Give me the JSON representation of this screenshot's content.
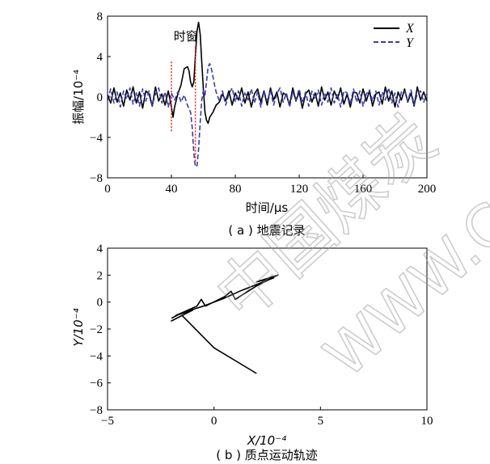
{
  "chart_data": [
    {
      "type": "line",
      "title": "",
      "caption": "( a ) 地震记录",
      "xlabel": "时间/μs",
      "ylabel": "振幅/10⁻⁴",
      "xlim": [
        0,
        200
      ],
      "ylim": [
        -8,
        8
      ],
      "xticks": [
        "0",
        "40",
        "80",
        "120",
        "160",
        "200"
      ],
      "yticks": [
        "−8",
        "−4",
        "0",
        "4",
        "8"
      ],
      "grid": false,
      "legend": "top-right",
      "annotation": {
        "text": "时窗",
        "window": [
          40,
          55
        ],
        "color": "#e03020"
      },
      "series": [
        {
          "name": "X",
          "color": "#000000",
          "style": "solid",
          "points": [
            [
              0,
              0.2
            ],
            [
              2,
              -0.6
            ],
            [
              4,
              0.9
            ],
            [
              6,
              -0.5
            ],
            [
              8,
              0.4
            ],
            [
              10,
              -0.9
            ],
            [
              12,
              0.7
            ],
            [
              14,
              -0.3
            ],
            [
              16,
              1.0
            ],
            [
              18,
              -0.6
            ],
            [
              20,
              0.5
            ],
            [
              22,
              -1.1
            ],
            [
              24,
              0.6
            ],
            [
              26,
              0.3
            ],
            [
              28,
              -0.9
            ],
            [
              30,
              1.0
            ],
            [
              32,
              -0.4
            ],
            [
              34,
              0.3
            ],
            [
              36,
              -0.8
            ],
            [
              38,
              0.6
            ],
            [
              40,
              -1.0
            ],
            [
              41,
              -2.0
            ],
            [
              42,
              -1.0
            ],
            [
              44,
              0.3
            ],
            [
              46,
              1.2
            ],
            [
              48,
              2.8
            ],
            [
              50,
              3.0
            ],
            [
              51,
              2.6
            ],
            [
              52,
              1.5
            ],
            [
              53,
              1.0
            ],
            [
              54,
              1.5
            ],
            [
              55,
              4.0
            ],
            [
              56,
              6.5
            ],
            [
              57,
              7.4
            ],
            [
              58,
              6.2
            ],
            [
              59,
              3.5
            ],
            [
              60,
              0.8
            ],
            [
              61,
              -1.5
            ],
            [
              62,
              -2.3
            ],
            [
              63,
              -2.6
            ],
            [
              64,
              -2.0
            ],
            [
              66,
              -1.5
            ],
            [
              68,
              -0.8
            ],
            [
              70,
              -0.5
            ],
            [
              72,
              0.3
            ],
            [
              74,
              -0.4
            ],
            [
              76,
              0.6
            ],
            [
              78,
              -0.8
            ],
            [
              80,
              0.4
            ],
            [
              82,
              -0.3
            ],
            [
              84,
              0.9
            ],
            [
              86,
              -0.6
            ],
            [
              88,
              0.5
            ],
            [
              90,
              -1.0
            ],
            [
              92,
              0.3
            ],
            [
              94,
              0.8
            ],
            [
              96,
              -0.5
            ],
            [
              98,
              0.6
            ],
            [
              100,
              -0.8
            ],
            [
              102,
              0.9
            ],
            [
              104,
              -0.3
            ],
            [
              106,
              0.5
            ],
            [
              108,
              -1.0
            ],
            [
              110,
              0.4
            ],
            [
              112,
              0.2
            ],
            [
              114,
              -0.8
            ],
            [
              116,
              0.9
            ],
            [
              118,
              -0.4
            ],
            [
              120,
              0.5
            ],
            [
              122,
              -1.1
            ],
            [
              124,
              0.3
            ],
            [
              126,
              0.7
            ],
            [
              128,
              -0.5
            ],
            [
              130,
              0.4
            ],
            [
              132,
              -0.9
            ],
            [
              134,
              1.0
            ],
            [
              136,
              -0.3
            ],
            [
              138,
              0.5
            ],
            [
              140,
              -0.8
            ],
            [
              142,
              0.6
            ],
            [
              144,
              -0.2
            ],
            [
              146,
              0.9
            ],
            [
              148,
              -0.7
            ],
            [
              150,
              0.3
            ],
            [
              152,
              -1.0
            ],
            [
              154,
              0.5
            ],
            [
              156,
              0.4
            ],
            [
              158,
              -0.6
            ],
            [
              160,
              0.8
            ],
            [
              162,
              -0.4
            ],
            [
              164,
              0.6
            ],
            [
              166,
              -0.9
            ],
            [
              168,
              0.3
            ],
            [
              170,
              0.5
            ],
            [
              172,
              -0.7
            ],
            [
              174,
              1.0
            ],
            [
              176,
              -0.4
            ],
            [
              178,
              0.6
            ],
            [
              180,
              -1.0
            ],
            [
              182,
              0.5
            ],
            [
              184,
              -0.3
            ],
            [
              186,
              0.8
            ],
            [
              188,
              -0.5
            ],
            [
              190,
              0.4
            ],
            [
              192,
              -0.9
            ],
            [
              194,
              1.0
            ],
            [
              196,
              -0.3
            ],
            [
              198,
              0.5
            ],
            [
              200,
              -0.4
            ]
          ]
        },
        {
          "name": "Y",
          "color": "#3b3bb0",
          "style": "dashed",
          "points": [
            [
              0,
              -0.3
            ],
            [
              2,
              0.8
            ],
            [
              4,
              -0.6
            ],
            [
              6,
              0.5
            ],
            [
              8,
              -1.0
            ],
            [
              10,
              0.6
            ],
            [
              12,
              -0.2
            ],
            [
              14,
              0.9
            ],
            [
              16,
              -0.7
            ],
            [
              18,
              0.4
            ],
            [
              20,
              -0.9
            ],
            [
              22,
              0.8
            ],
            [
              24,
              -0.4
            ],
            [
              26,
              0.6
            ],
            [
              28,
              -0.8
            ],
            [
              30,
              0.3
            ],
            [
              32,
              0.9
            ],
            [
              34,
              -0.6
            ],
            [
              36,
              0.5
            ],
            [
              38,
              -1.0
            ],
            [
              40,
              0.4
            ],
            [
              42,
              -0.3
            ],
            [
              44,
              0.5
            ],
            [
              46,
              -0.5
            ],
            [
              48,
              0.2
            ],
            [
              50,
              -0.8
            ],
            [
              52,
              -1.5
            ],
            [
              53,
              -3.0
            ],
            [
              54,
              -5.5
            ],
            [
              55,
              -6.9
            ],
            [
              56,
              -6.8
            ],
            [
              57,
              -5.2
            ],
            [
              58,
              -2.5
            ],
            [
              59,
              -0.3
            ],
            [
              60,
              0.6
            ],
            [
              61,
              0.2
            ],
            [
              62,
              1.5
            ],
            [
              63,
              3.0
            ],
            [
              64,
              3.3
            ],
            [
              65,
              2.8
            ],
            [
              66,
              2.0
            ],
            [
              67,
              1.2
            ],
            [
              68,
              0.5
            ],
            [
              70,
              -0.4
            ],
            [
              72,
              0.6
            ],
            [
              74,
              -0.8
            ],
            [
              76,
              0.3
            ],
            [
              78,
              0.9
            ],
            [
              80,
              -0.5
            ],
            [
              82,
              0.6
            ],
            [
              84,
              -0.9
            ],
            [
              86,
              0.4
            ],
            [
              88,
              -0.3
            ],
            [
              90,
              0.8
            ],
            [
              92,
              -0.6
            ],
            [
              94,
              0.5
            ],
            [
              96,
              -1.0
            ],
            [
              98,
              0.6
            ],
            [
              100,
              -0.4
            ],
            [
              102,
              0.7
            ],
            [
              104,
              -0.8
            ],
            [
              106,
              0.3
            ],
            [
              108,
              0.9
            ],
            [
              110,
              -0.5
            ],
            [
              112,
              0.4
            ],
            [
              114,
              -1.0
            ],
            [
              116,
              0.5
            ],
            [
              118,
              -0.3
            ],
            [
              120,
              0.8
            ],
            [
              122,
              -0.6
            ],
            [
              124,
              0.5
            ],
            [
              126,
              -0.9
            ],
            [
              128,
              0.6
            ],
            [
              130,
              -0.2
            ],
            [
              132,
              0.7
            ],
            [
              134,
              -0.8
            ],
            [
              136,
              0.4
            ],
            [
              138,
              -0.5
            ],
            [
              140,
              0.9
            ],
            [
              142,
              -0.6
            ],
            [
              144,
              0.3
            ],
            [
              146,
              -1.0
            ],
            [
              148,
              0.6
            ],
            [
              150,
              0.4
            ],
            [
              152,
              -0.7
            ],
            [
              154,
              0.8
            ],
            [
              156,
              -0.5
            ],
            [
              158,
              0.6
            ],
            [
              160,
              -0.9
            ],
            [
              162,
              0.3
            ],
            [
              164,
              0.7
            ],
            [
              166,
              -0.4
            ],
            [
              168,
              0.6
            ],
            [
              170,
              -0.8
            ],
            [
              172,
              0.5
            ],
            [
              174,
              -0.3
            ],
            [
              176,
              0.9
            ],
            [
              178,
              -0.6
            ],
            [
              180,
              0.4
            ],
            [
              182,
              -1.0
            ],
            [
              184,
              0.5
            ],
            [
              186,
              0.6
            ],
            [
              188,
              -0.4
            ],
            [
              190,
              0.7
            ],
            [
              192,
              -0.8
            ],
            [
              194,
              0.3
            ],
            [
              196,
              0.6
            ],
            [
              198,
              -0.5
            ],
            [
              200,
              0.3
            ]
          ]
        }
      ]
    },
    {
      "type": "line",
      "title": "",
      "caption": "( b ) 质点运动轨迹",
      "xlabel": "X/10⁻⁴",
      "ylabel": "Y/10⁻⁴",
      "xlim": [
        -5,
        10
      ],
      "ylim": [
        -8,
        4
      ],
      "xticks": [
        "−5",
        "0",
        "5",
        "10"
      ],
      "yticks": [
        "−8",
        "−6",
        "−4",
        "−2",
        "0",
        "2",
        "4"
      ],
      "grid": false,
      "series": [
        {
          "name": "",
          "color": "#000000",
          "style": "solid",
          "points": [
            [
              2.0,
              -5.3
            ],
            [
              0.0,
              -3.4
            ],
            [
              -1.5,
              -1.0
            ],
            [
              -2.0,
              -1.4
            ],
            [
              -1.0,
              -0.6
            ],
            [
              -1.8,
              -1.0
            ],
            [
              -0.8,
              -0.3
            ],
            [
              -0.6,
              0.2
            ],
            [
              -0.4,
              -0.3
            ],
            [
              0.5,
              0.4
            ],
            [
              0.8,
              0.8
            ],
            [
              1.0,
              0.2
            ],
            [
              2.0,
              1.2
            ],
            [
              3.0,
              2.0
            ],
            [
              2.0,
              1.5
            ],
            [
              2.8,
              1.8
            ],
            [
              1.2,
              0.8
            ],
            [
              0.5,
              0.3
            ],
            [
              -0.5,
              -0.3
            ],
            [
              -1.5,
              -0.8
            ],
            [
              -2.0,
              -1.2
            ]
          ]
        }
      ]
    }
  ]
}
